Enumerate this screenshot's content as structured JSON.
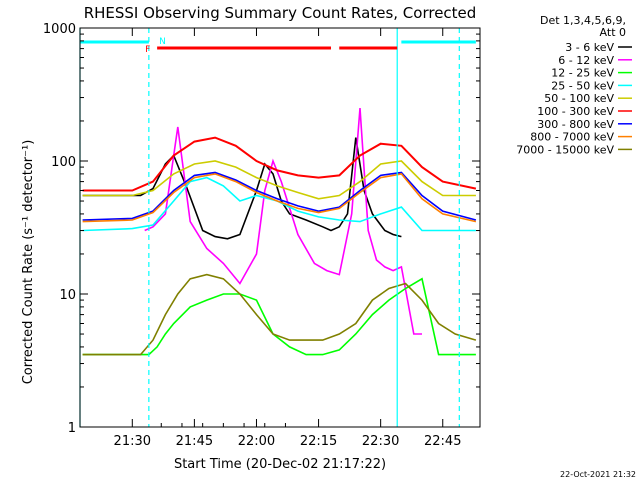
{
  "chart_data": {
    "type": "line",
    "title": "RHESSI Observing Summary Count Rates, Corrected",
    "ylabel": "Corrected Count Rate (s⁻¹ detector⁻¹)",
    "xlabel": "Start Time (20-Dec-02 21:17:22)",
    "y_scale": "log",
    "ylim": [
      1,
      1000
    ],
    "xlim": [
      "21:17:22",
      "22:54:00"
    ],
    "xticks": [
      "21:30",
      "21:45",
      "22:00",
      "22:15",
      "22:30",
      "22:45"
    ],
    "yticks": [
      1,
      10,
      100,
      1000
    ],
    "ytick_labels": [
      "1",
      "10",
      "100",
      "1000"
    ],
    "legend_header": [
      "Det 1,3,4,5,6,9,",
      "Att 0"
    ],
    "legend_position": "right",
    "footer_date": "22-Oct-2021 21:32",
    "flag_labels": [
      "N",
      "F"
    ],
    "series": [
      {
        "name": "3 - 6 keV",
        "color": "#000000",
        "x": [
          "21:18",
          "21:32",
          "21:35",
          "21:38",
          "21:40",
          "21:43",
          "21:47",
          "21:50",
          "21:53",
          "21:56",
          "22:00",
          "22:02",
          "22:04",
          "22:06",
          "22:08",
          "22:12",
          "22:16",
          "22:18",
          "22:20",
          "22:22",
          "22:24",
          "22:26",
          "22:28",
          "22:31",
          "22:33",
          "22:35"
        ],
        "y": [
          55,
          55,
          62,
          95,
          110,
          65,
          30,
          27,
          26,
          28,
          60,
          95,
          80,
          50,
          40,
          36,
          32,
          30,
          32,
          40,
          150,
          60,
          40,
          30,
          28,
          27
        ]
      },
      {
        "name": "6 - 12 keV",
        "color": "#ff00ff",
        "x": [
          "21:33",
          "21:35",
          "21:38",
          "21:40",
          "21:41",
          "21:44",
          "21:48",
          "21:52",
          "21:56",
          "22:00",
          "22:02",
          "22:04",
          "22:06",
          "22:10",
          "22:14",
          "22:17",
          "22:20",
          "22:23",
          "22:25",
          "22:27",
          "22:29",
          "22:31",
          "22:33",
          "22:35",
          "22:38",
          "22:40"
        ],
        "y": [
          30,
          32,
          40,
          110,
          180,
          35,
          22,
          17,
          12,
          20,
          60,
          100,
          70,
          28,
          17,
          15,
          14,
          40,
          250,
          30,
          18,
          16,
          15,
          16,
          5,
          5
        ]
      },
      {
        "name": "12 - 25 keV",
        "color": "#00ff00",
        "x": [
          "21:18",
          "21:32",
          "21:34",
          "21:36",
          "21:38",
          "21:40",
          "21:44",
          "21:48",
          "21:52",
          "21:56",
          "22:00",
          "22:04",
          "22:08",
          "22:12",
          "22:16",
          "22:20",
          "22:24",
          "22:28",
          "22:32",
          "22:36",
          "22:40",
          "22:44",
          "22:48",
          "22:53"
        ],
        "y": [
          3.5,
          3.5,
          3.5,
          4,
          5,
          6,
          8,
          9,
          10,
          10,
          9,
          5,
          4,
          3.5,
          3.5,
          3.8,
          5,
          7,
          9,
          11,
          13,
          3.5,
          3.5,
          3.5
        ]
      },
      {
        "name": "25 - 50 keV",
        "color": "#00ffff",
        "x": [
          "21:18",
          "21:30",
          "21:35",
          "21:40",
          "21:44",
          "21:48",
          "21:52",
          "21:56",
          "22:00",
          "22:05",
          "22:10",
          "22:15",
          "22:20",
          "22:25",
          "22:30",
          "22:35",
          "22:40",
          "22:45",
          "22:53"
        ],
        "y": [
          30,
          31,
          33,
          50,
          70,
          75,
          65,
          50,
          55,
          50,
          42,
          38,
          36,
          35,
          40,
          45,
          30,
          30,
          30
        ]
      },
      {
        "name": "50 - 100 keV",
        "color": "#cccc00",
        "x": [
          "21:18",
          "21:30",
          "21:35",
          "21:40",
          "21:45",
          "21:50",
          "21:55",
          "22:00",
          "22:05",
          "22:10",
          "22:15",
          "22:20",
          "22:25",
          "22:30",
          "22:35",
          "22:40",
          "22:45",
          "22:53"
        ],
        "y": [
          55,
          55,
          60,
          80,
          95,
          100,
          90,
          75,
          65,
          58,
          52,
          55,
          70,
          95,
          100,
          70,
          55,
          55
        ]
      },
      {
        "name": "100 - 300 keV",
        "color": "#ff0000",
        "x": [
          "21:18",
          "21:30",
          "21:35",
          "21:40",
          "21:45",
          "21:50",
          "21:55",
          "22:00",
          "22:05",
          "22:10",
          "22:15",
          "22:20",
          "22:25",
          "22:30",
          "22:35",
          "22:40",
          "22:45",
          "22:53"
        ],
        "y": [
          60,
          60,
          70,
          110,
          140,
          150,
          130,
          100,
          85,
          78,
          75,
          78,
          110,
          135,
          130,
          90,
          70,
          62
        ]
      },
      {
        "name": "300 - 800 keV",
        "color": "#0000ff",
        "x": [
          "21:18",
          "21:30",
          "21:35",
          "21:40",
          "21:45",
          "21:50",
          "21:55",
          "22:00",
          "22:05",
          "22:10",
          "22:15",
          "22:20",
          "22:25",
          "22:30",
          "22:35",
          "22:40",
          "22:45",
          "22:53"
        ],
        "y": [
          36,
          37,
          42,
          60,
          78,
          82,
          72,
          60,
          52,
          46,
          42,
          45,
          60,
          78,
          82,
          55,
          42,
          36
        ]
      },
      {
        "name": "800 - 7000 keV",
        "color": "#ff8000",
        "x": [
          "21:18",
          "21:30",
          "21:35",
          "21:40",
          "21:45",
          "21:50",
          "21:55",
          "22:00",
          "22:05",
          "22:10",
          "22:15",
          "22:20",
          "22:25",
          "22:30",
          "22:35",
          "22:40",
          "22:45",
          "22:53"
        ],
        "y": [
          35,
          36,
          41,
          58,
          75,
          80,
          70,
          58,
          50,
          44,
          41,
          44,
          58,
          75,
          80,
          52,
          40,
          35
        ]
      },
      {
        "name": "7000 - 15000 keV",
        "color": "#808000",
        "x": [
          "21:18",
          "21:32",
          "21:35",
          "21:38",
          "21:41",
          "21:44",
          "21:48",
          "21:52",
          "21:56",
          "22:00",
          "22:04",
          "22:08",
          "22:12",
          "22:16",
          "22:20",
          "22:24",
          "22:28",
          "22:32",
          "22:36",
          "22:40",
          "22:44",
          "22:48",
          "22:53"
        ],
        "y": [
          3.5,
          3.5,
          4.5,
          7,
          10,
          13,
          14,
          13,
          10,
          7,
          5,
          4.5,
          4.5,
          4.5,
          5,
          6,
          9,
          11,
          12,
          9,
          6,
          5,
          4.5
        ]
      }
    ],
    "flag_bars": [
      {
        "name": "N",
        "color": "#00ffff",
        "segments": [
          [
            "21:17:22",
            "21:34"
          ],
          [
            "22:35",
            "22:53"
          ]
        ]
      },
      {
        "name": "F",
        "color": "#ff0000",
        "segments": [
          [
            "21:36",
            "22:18"
          ],
          [
            "22:20",
            "22:34"
          ]
        ]
      }
    ],
    "vertical_markers": [
      {
        "time": "21:34",
        "color": "#00ffff",
        "style": "dashed"
      },
      {
        "time": "22:34",
        "color": "#00ffff",
        "style": "solid"
      },
      {
        "time": "22:49",
        "color": "#00ffff",
        "style": "dashed"
      },
      {
        "time": "21:17:22",
        "color": "#00ffff",
        "style": "solid"
      }
    ]
  }
}
